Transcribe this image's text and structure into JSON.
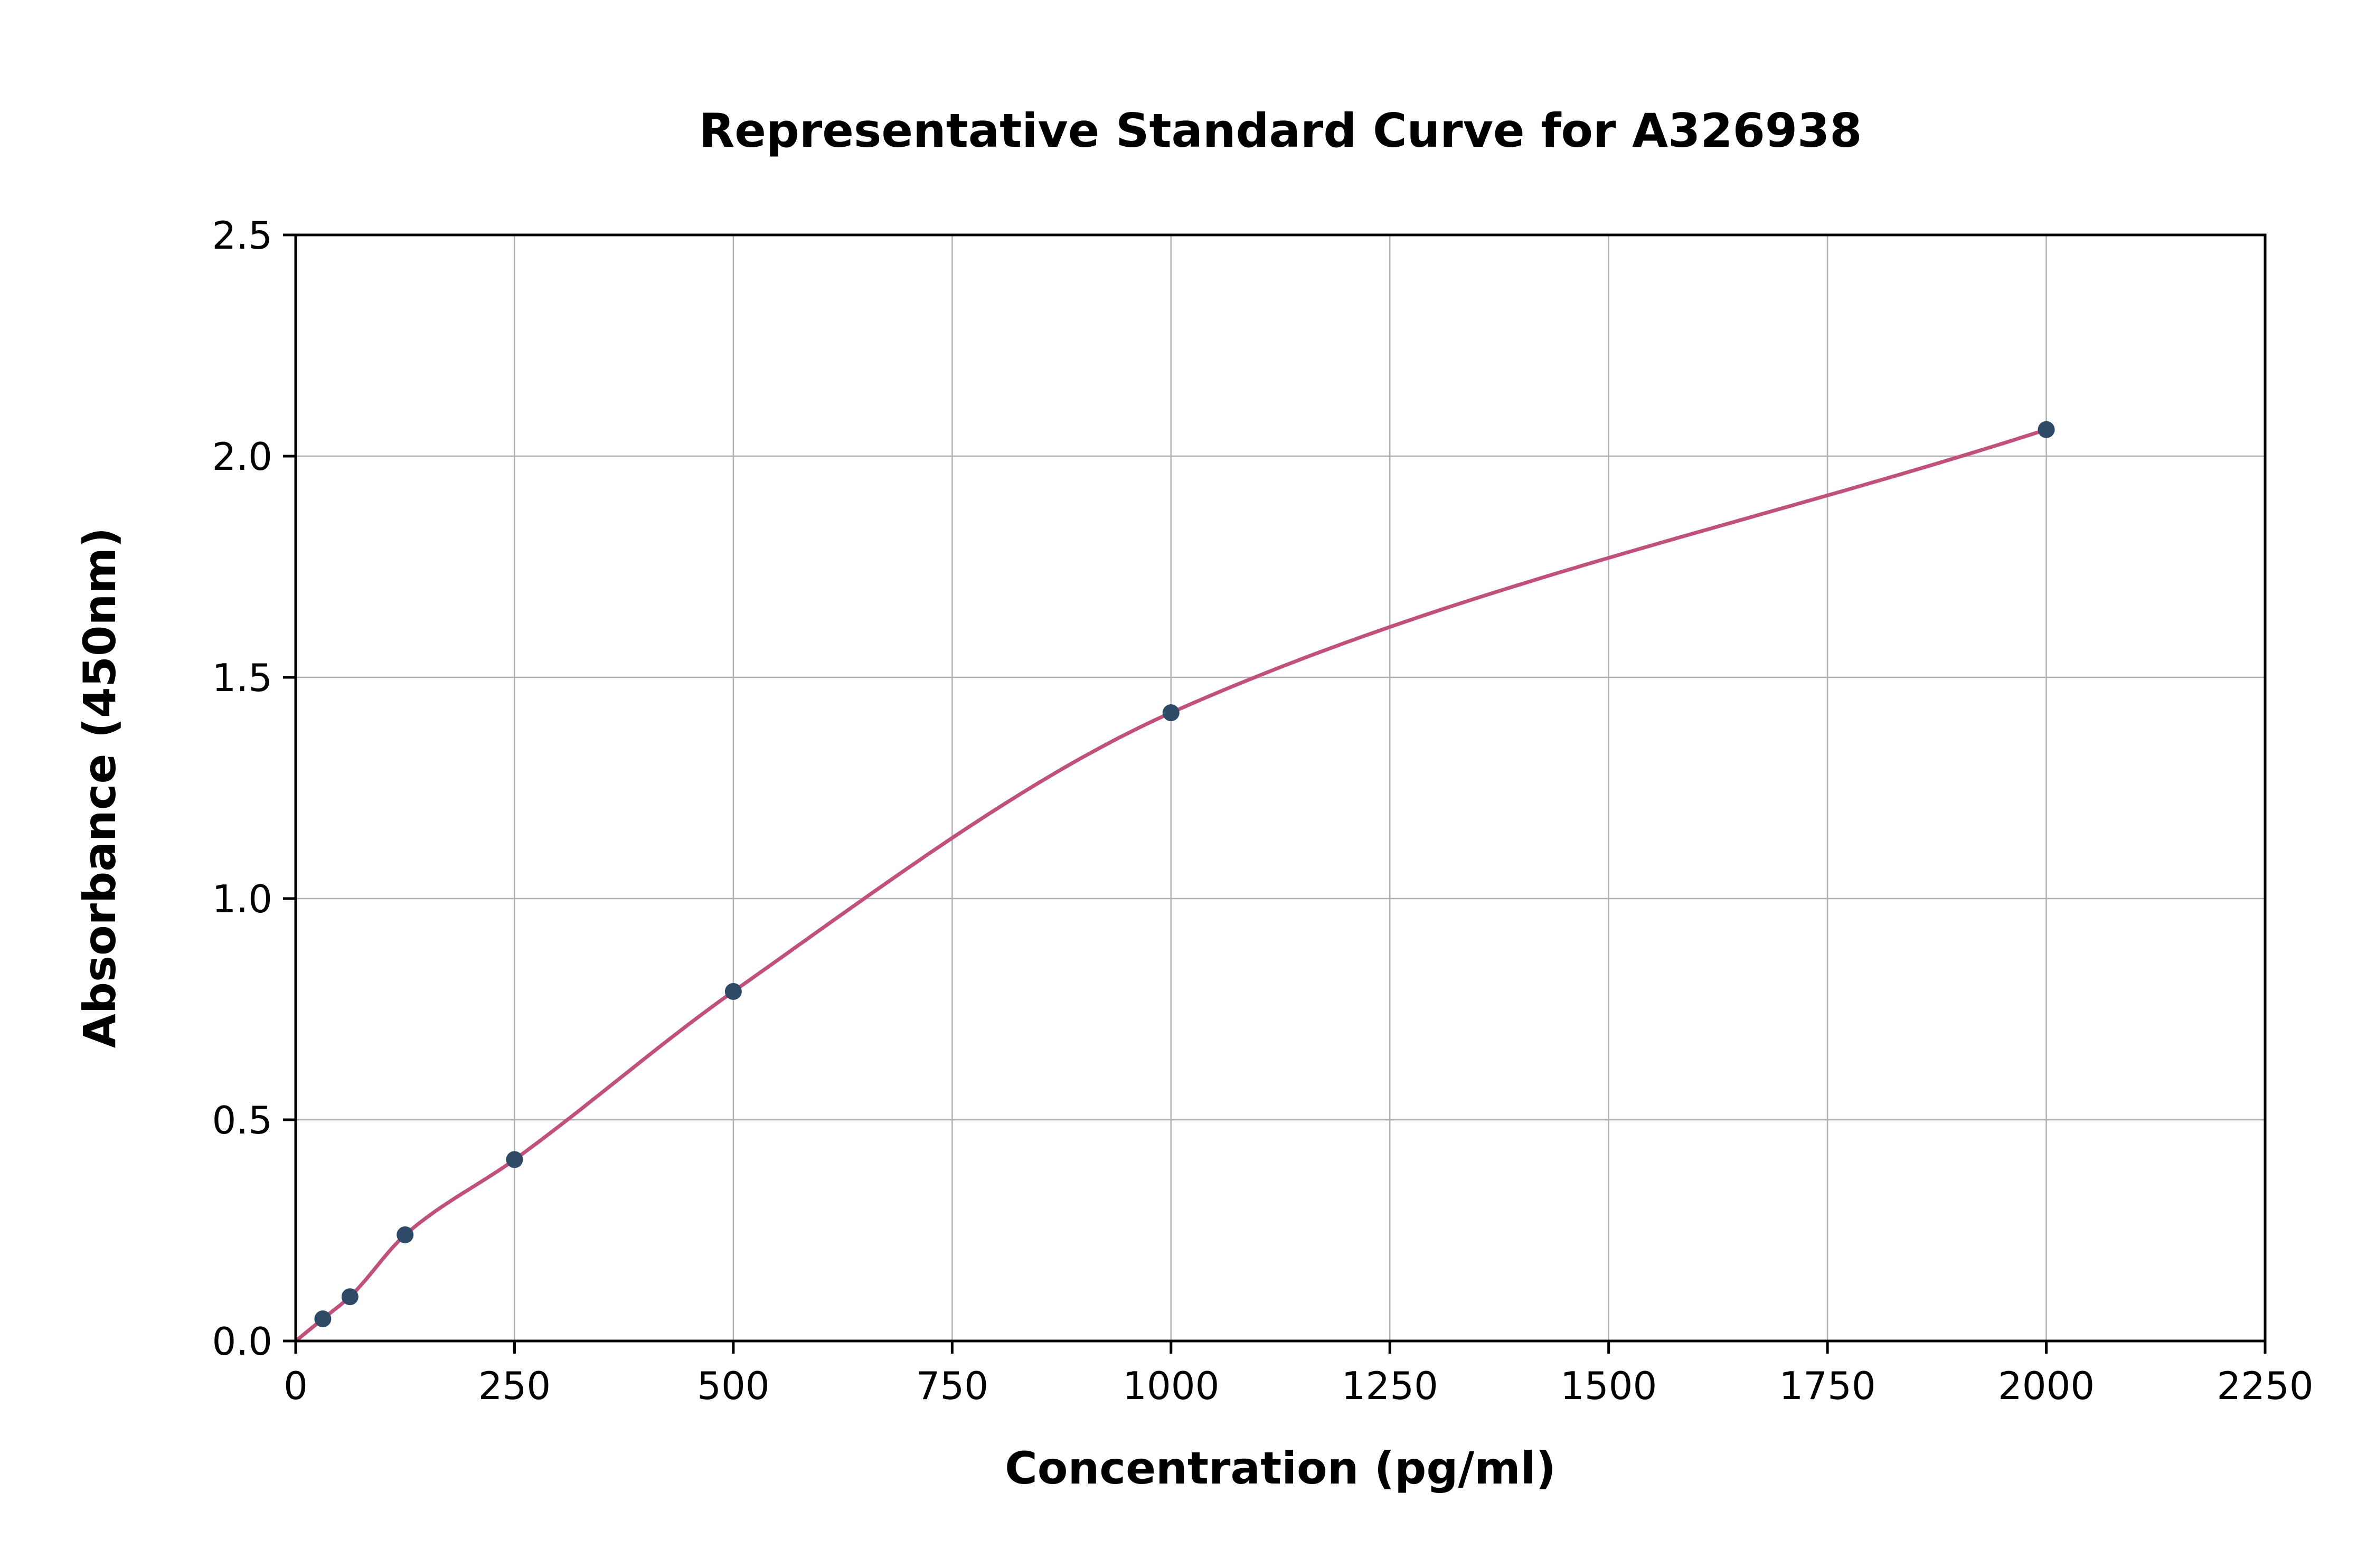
{
  "chart_data": {
    "type": "scatter",
    "title": "Representative Standard Curve for A326938",
    "xlabel": "Concentration (pg/ml)",
    "ylabel": "Absorbance (450nm)",
    "xlim": [
      0,
      2250
    ],
    "ylim": [
      0,
      2.5
    ],
    "x_ticks": [
      0,
      250,
      500,
      750,
      1000,
      1250,
      1500,
      1750,
      2000,
      2250
    ],
    "y_ticks": [
      0.0,
      0.5,
      1.0,
      1.5,
      2.0,
      2.5
    ],
    "grid": true,
    "legend_position": "none",
    "points": [
      {
        "x": 31,
        "y": 0.05
      },
      {
        "x": 62,
        "y": 0.1
      },
      {
        "x": 125,
        "y": 0.24
      },
      {
        "x": 250,
        "y": 0.41
      },
      {
        "x": 500,
        "y": 0.79
      },
      {
        "x": 1000,
        "y": 1.42
      },
      {
        "x": 2000,
        "y": 2.06
      }
    ],
    "curve_start": {
      "x": 0,
      "y": 0.0
    },
    "colors": {
      "point": "#2e4a66",
      "curve": "#c0517c",
      "grid": "#b0b0b0",
      "axis": "#000000",
      "background": "#ffffff"
    }
  }
}
